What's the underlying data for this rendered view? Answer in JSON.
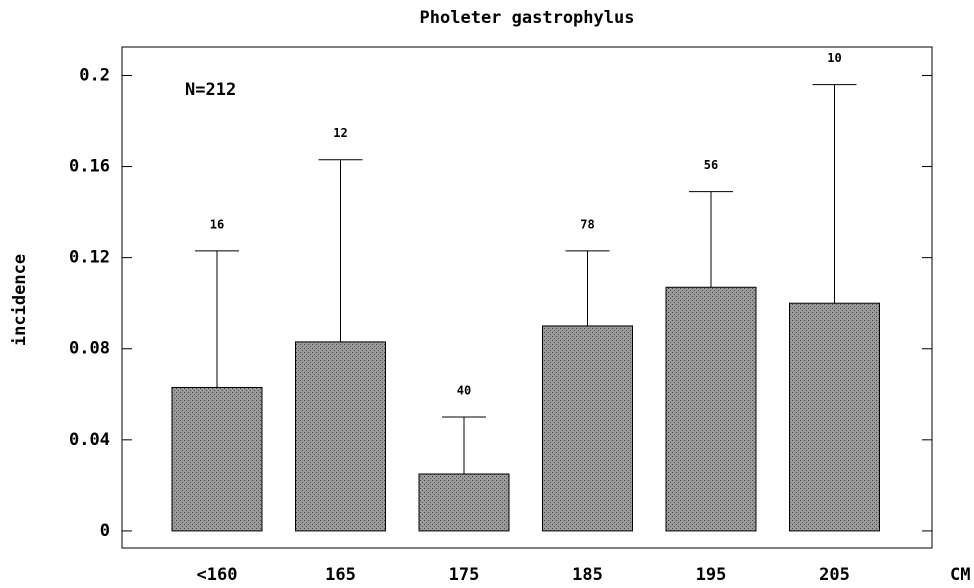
{
  "chart_data": {
    "type": "bar",
    "title": "Pholeter gastrophylus",
    "y_label": "incidence",
    "x_unit_label": "CM",
    "annotation": "N=212",
    "categories": [
      "<160",
      "165",
      "175",
      "185",
      "195",
      "205"
    ],
    "values": [
      0.063,
      0.083,
      0.025,
      0.09,
      0.107,
      0.1
    ],
    "errors": [
      0.06,
      0.08,
      0.025,
      0.033,
      0.042,
      0.096
    ],
    "counts": [
      16,
      12,
      40,
      78,
      56,
      10
    ],
    "color": "#8a8a8a",
    "ylim": [
      -0.0075,
      0.2125
    ],
    "yticks": [
      0,
      {
        "value": 0.04,
        "label": "0.04"
      },
      {
        "value": 0.08,
        "label": "0.08"
      },
      {
        "value": 0.12,
        "label": "0.12"
      },
      {
        "value": 0.16,
        "label": "0.16"
      },
      0.2
    ]
  }
}
